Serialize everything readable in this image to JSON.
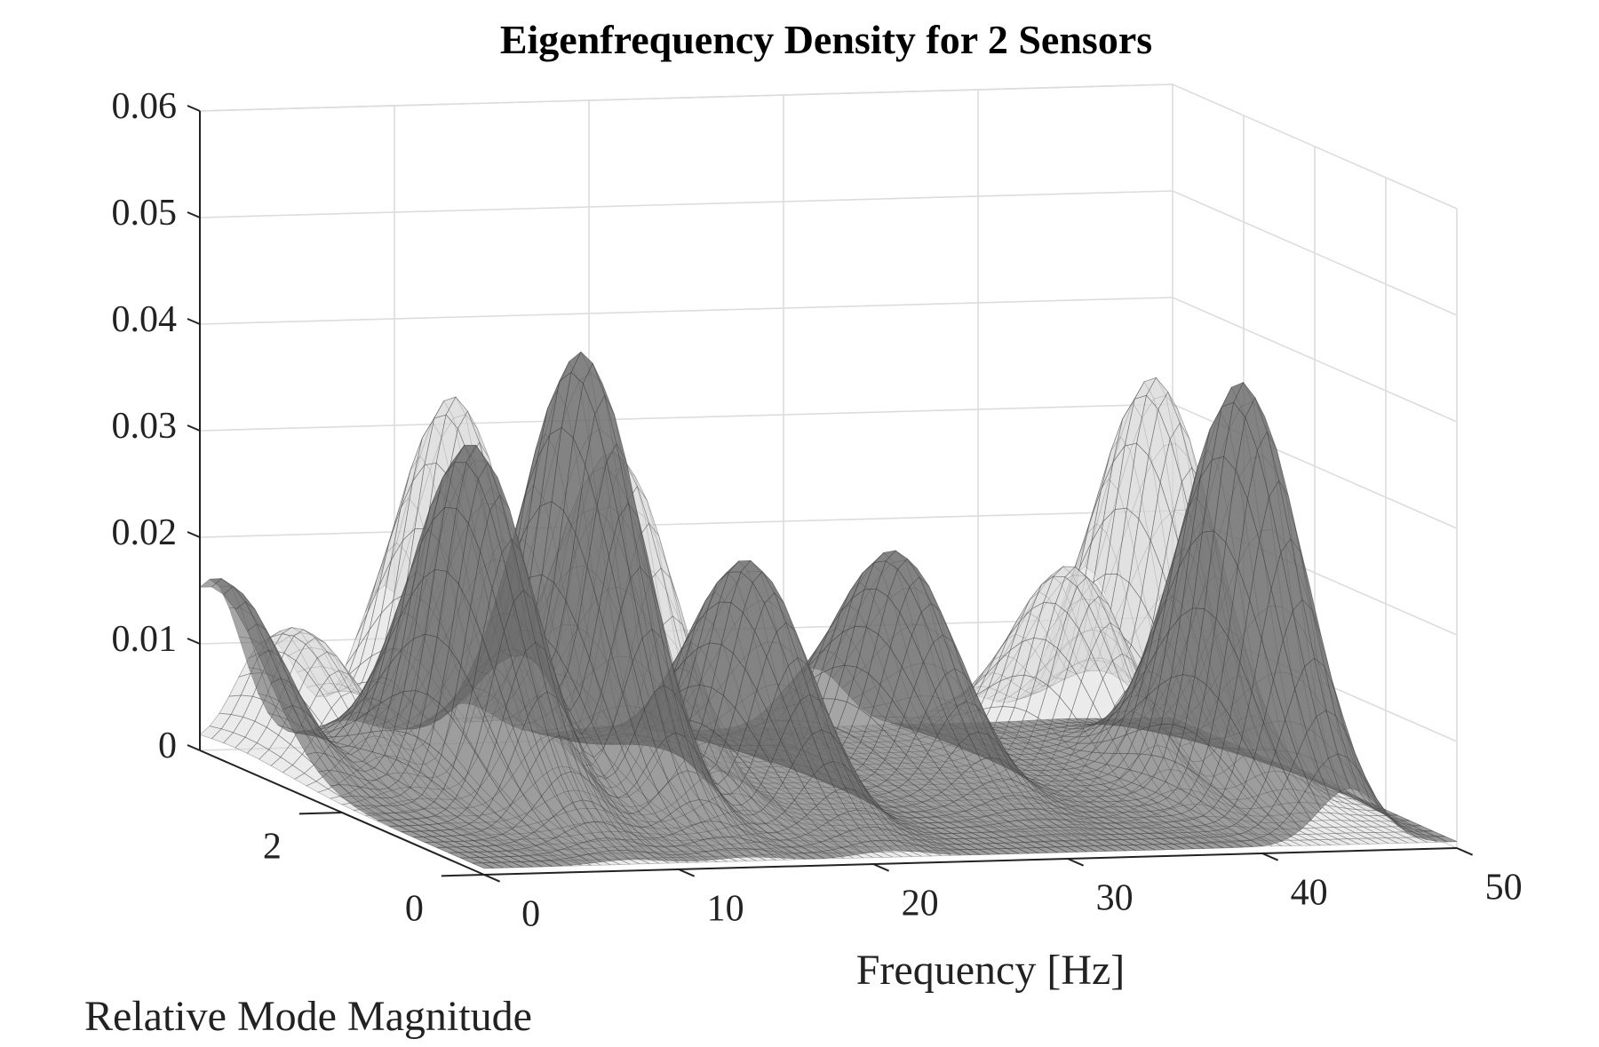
{
  "chart_data": {
    "type": "surface",
    "title": "Eigenfrequency Density for 2 Sensors",
    "xlabel": "Frequency [Hz]",
    "ylabel": "Relative Mode Magnitude",
    "zlabel": "",
    "xlim": [
      0,
      50
    ],
    "ylim": [
      0,
      4
    ],
    "zlim": [
      0,
      0.06
    ],
    "x_ticks": [
      "0",
      "10",
      "20",
      "30",
      "40",
      "50"
    ],
    "y_ticks": [
      "0",
      "2"
    ],
    "z_ticks": [
      "0",
      "0.01",
      "0.02",
      "0.03",
      "0.04",
      "0.05",
      "0.06"
    ],
    "grid": true,
    "colormap": "gray",
    "series": [
      {
        "peaks": [
          {
            "frequency": 0.5,
            "magnitude": 3.8,
            "density": 0.016
          },
          {
            "frequency": 7.5,
            "magnitude": 2.2,
            "density": 0.033
          },
          {
            "frequency": 13.5,
            "magnitude": 2.3,
            "density": 0.041
          },
          {
            "frequency": 21.0,
            "magnitude": 2.0,
            "density": 0.022
          },
          {
            "frequency": 31.5,
            "magnitude": 2.8,
            "density": 0.02
          },
          {
            "frequency": 44.5,
            "magnitude": 1.5,
            "density": 0.039
          }
        ]
      },
      {
        "peaks": [
          {
            "frequency": 3.5,
            "magnitude": 3.5,
            "density": 0.012
          },
          {
            "frequency": 9.5,
            "magnitude": 3.0,
            "density": 0.035
          },
          {
            "frequency": 17.0,
            "magnitude": 2.8,
            "density": 0.03
          },
          {
            "frequency": 39.5,
            "magnitude": 2.5,
            "density": 0.019
          },
          {
            "frequency": 45.5,
            "magnitude": 3.0,
            "density": 0.035
          }
        ]
      }
    ]
  },
  "colors": {
    "surface_dark": "#6e6e6e",
    "surface_light": "#d8d8d8",
    "mesh": "#333333",
    "grid": "#dcdcdc",
    "axis": "#222222"
  }
}
